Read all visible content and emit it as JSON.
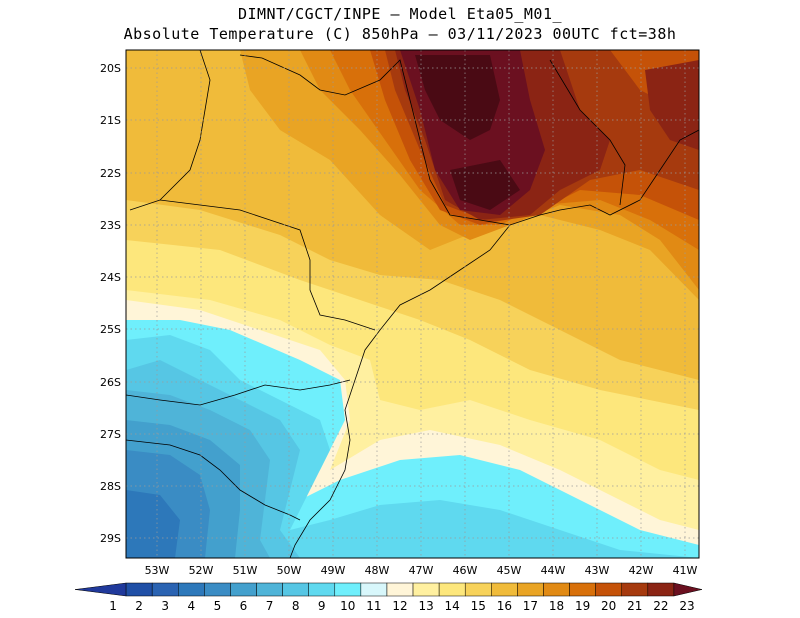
{
  "title_line1": "DIMNT/CGCT/INPE —  Model Eta05_M01_",
  "title_line2": "Absolute Temperature (C) 850hPa —  03/11/2023 00UTC fct=38h",
  "lat_labels": [
    "20S",
    "21S",
    "22S",
    "23S",
    "24S",
    "25S",
    "26S",
    "27S",
    "28S",
    "29S"
  ],
  "lon_labels": [
    "53W",
    "52W",
    "51W",
    "50W",
    "49W",
    "48W",
    "47W",
    "46W",
    "45W",
    "44W",
    "43W",
    "42W",
    "41W"
  ],
  "colorbar": {
    "labels": [
      "1",
      "2",
      "3",
      "4",
      "5",
      "6",
      "7",
      "8",
      "9",
      "10",
      "11",
      "12",
      "13",
      "14",
      "15",
      "16",
      "17",
      "18",
      "19",
      "20",
      "21",
      "22",
      "23"
    ],
    "colors": [
      "#20399b",
      "#1f4fa6",
      "#2a63b2",
      "#2d78ba",
      "#3a8cc4",
      "#43a0cd",
      "#4fb4d8",
      "#56c6e4",
      "#5fd9ef",
      "#6feffc",
      "#d8f7fb",
      "#fff5d8",
      "#fff0a0",
      "#fde77c",
      "#f7d25a",
      "#f0bb3a",
      "#e9a424",
      "#e18a14",
      "#d8700a",
      "#c55208",
      "#a63a0e",
      "#8b2414",
      "#6b1020"
    ]
  },
  "map_colors": {
    "land_outline": "#000000",
    "grid": "#9a9a9a"
  }
}
